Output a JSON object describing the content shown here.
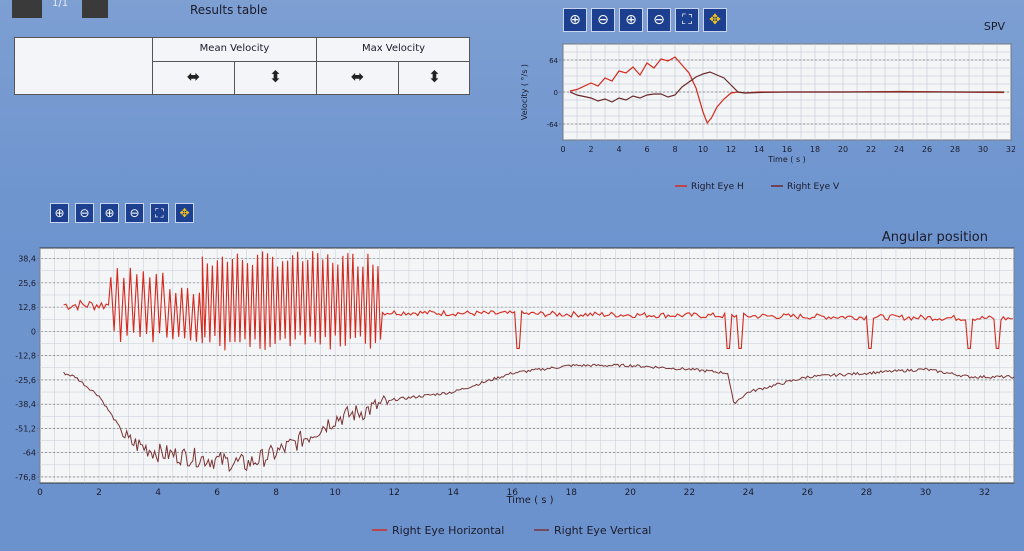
{
  "header": {
    "page_indicator": "1/1",
    "results_title": "Results table"
  },
  "results_table": {
    "col1": "Mean Velocity",
    "col2": "Max Velocity",
    "arrows": [
      "⬌",
      "⬍",
      "⬌",
      "⬍"
    ]
  },
  "toolbar_icons": [
    "zoom-in-vertical",
    "zoom-out-vertical",
    "zoom-in-horizontal",
    "zoom-out-horizontal",
    "fit-all",
    "pan-move"
  ],
  "chart_data": [
    {
      "type": "line",
      "title": "SPV",
      "xlabel": "Time ( s )",
      "ylabel": "Velocity ( °/s )",
      "xlim": [
        0,
        32
      ],
      "ylim": [
        -96,
        96
      ],
      "xticks": [
        0,
        2,
        4,
        6,
        8,
        10,
        12,
        14,
        16,
        18,
        20,
        22,
        24,
        26,
        28,
        30,
        32
      ],
      "yticks": [
        64,
        0,
        -64
      ],
      "legend": [
        "Right Eye H",
        "Right Eye V"
      ],
      "series": [
        {
          "name": "Right Eye H",
          "color": "#d42a1e",
          "x": [
            0.5,
            1,
            2,
            2.5,
            3,
            3.5,
            4,
            4.5,
            5,
            5.5,
            6,
            6.5,
            7,
            7.5,
            8,
            8.5,
            9,
            9.5,
            10,
            10.3,
            10.6,
            11,
            11.5,
            12,
            12.5,
            13,
            14,
            16,
            20,
            24,
            28,
            31.5
          ],
          "y": [
            2,
            5,
            18,
            12,
            28,
            22,
            42,
            38,
            50,
            34,
            58,
            48,
            66,
            62,
            70,
            54,
            38,
            8,
            -40,
            -62,
            -52,
            -30,
            -14,
            -2,
            0,
            -2,
            0,
            0,
            0,
            1,
            0,
            -1
          ]
        },
        {
          "name": "Right Eye V",
          "color": "#6a2a2a",
          "x": [
            0.5,
            1,
            2,
            2.5,
            3,
            3.5,
            4,
            4.5,
            5,
            5.5,
            6,
            6.5,
            7,
            7.5,
            8,
            8.5,
            9,
            9.5,
            10,
            10.5,
            11,
            11.5,
            12,
            12.5,
            13,
            14,
            16,
            20,
            24,
            28,
            31.5
          ],
          "y": [
            0,
            -6,
            -12,
            -18,
            -14,
            -20,
            -12,
            -16,
            -8,
            -12,
            -6,
            -4,
            -4,
            -10,
            -6,
            10,
            20,
            30,
            36,
            40,
            34,
            28,
            14,
            0,
            -2,
            -1,
            0,
            0,
            0,
            0,
            0
          ]
        }
      ]
    },
    {
      "type": "line",
      "title": "Angular position",
      "xlabel": "Time ( s )",
      "ylabel": "",
      "xlim": [
        0,
        33
      ],
      "ylim": [
        -80,
        44
      ],
      "xticks": [
        0,
        2,
        4,
        6,
        8,
        10,
        12,
        14,
        16,
        18,
        20,
        22,
        24,
        26,
        28,
        30,
        32
      ],
      "yticks": [
        "38,4",
        "25,6",
        "12,8",
        "0",
        "-12,8",
        "-25,6",
        "-38,4",
        "-51,2",
        "-64",
        "-76,8"
      ],
      "legend": [
        "Right Eye Horizontal",
        "Right Eye Vertical"
      ],
      "series": [
        {
          "name": "Right Eye Horizontal",
          "color": "#d42a1e",
          "segments": [
            {
              "from": 0.8,
              "to": 2.4,
              "kind": "step",
              "base": 14,
              "amp": 3
            },
            {
              "from": 2.4,
              "to": 4.2,
              "kind": "oscillation",
              "base": 14,
              "amp": 18,
              "period": 0.22
            },
            {
              "from": 4.2,
              "to": 5.5,
              "kind": "oscillation",
              "base": 8,
              "amp": 14,
              "period": 0.2
            },
            {
              "from": 5.5,
              "to": 11.6,
              "kind": "oscillation",
              "base": 16,
              "amp": 24,
              "period": 0.17
            },
            {
              "from": 11.6,
              "to": 33,
              "kind": "drift",
              "base": 10,
              "amp": 3
            }
          ],
          "dips_x": [
            16.2,
            23.3,
            23.7,
            28.1,
            31.5,
            32.4
          ],
          "dip_depth": -9
        },
        {
          "name": "Right Eye Vertical",
          "color": "#7a3434",
          "points": [
            [
              0.8,
              -22
            ],
            [
              1.2,
              -24
            ],
            [
              1.5,
              -28
            ],
            [
              2,
              -34
            ],
            [
              2.5,
              -46
            ],
            [
              3,
              -58
            ],
            [
              4,
              -64
            ],
            [
              5,
              -66
            ],
            [
              6,
              -68
            ],
            [
              7,
              -70
            ],
            [
              8,
              -64
            ],
            [
              9,
              -56
            ],
            [
              10,
              -46
            ],
            [
              11,
              -42
            ],
            [
              12,
              -36
            ],
            [
              14,
              -32
            ],
            [
              16,
              -22
            ],
            [
              18,
              -18
            ],
            [
              20,
              -18
            ],
            [
              22,
              -20
            ],
            [
              23.3,
              -22
            ],
            [
              23.5,
              -38
            ],
            [
              24,
              -32
            ],
            [
              26,
              -24
            ],
            [
              28,
              -22
            ],
            [
              30,
              -20
            ],
            [
              31.5,
              -24
            ],
            [
              33,
              -24
            ]
          ]
        }
      ]
    }
  ]
}
